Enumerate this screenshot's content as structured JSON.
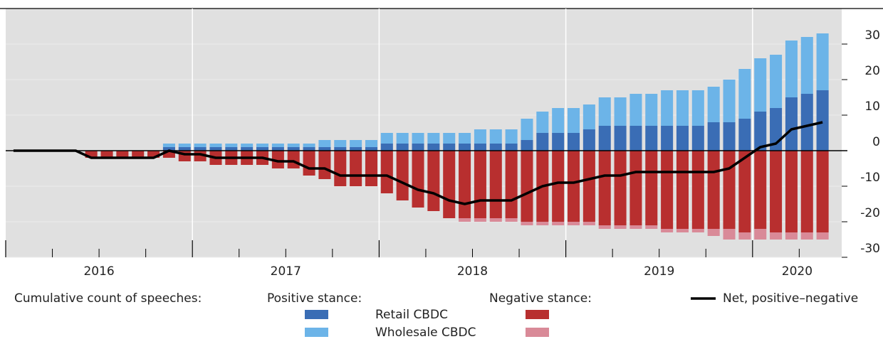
{
  "chart_data": {
    "type": "stacked-bar",
    "categories": [
      "2016",
      null,
      null,
      null,
      null,
      null,
      null,
      null,
      null,
      null,
      null,
      null,
      "2017",
      null,
      null,
      null,
      null,
      null,
      null,
      null,
      null,
      null,
      null,
      null,
      "2018",
      null,
      null,
      null,
      null,
      null,
      null,
      null,
      null,
      null,
      null,
      null,
      "2019",
      null,
      null,
      null,
      null,
      null,
      null,
      null,
      null,
      null,
      null,
      null,
      "2020",
      null,
      null,
      null,
      null
    ],
    "legend_title": "Cumulative count of speeches:",
    "stack_names": [
      "Retail CBDC",
      "Wholesale CBDC"
    ],
    "series": [
      {
        "name": "Positive stance:",
        "stack": [
          {
            "color": "#3a6db5",
            "values": [
              0,
              0,
              0,
              0,
              0,
              0,
              0,
              0,
              0,
              0,
              1,
              1,
              1,
              1,
              1,
              1,
              1,
              1,
              1,
              1,
              1,
              1,
              1,
              1,
              2,
              2,
              2,
              2,
              2,
              2,
              2,
              2,
              2,
              3,
              5,
              5,
              5,
              6,
              7,
              7,
              7,
              7,
              7,
              7,
              7,
              8,
              8,
              9,
              11,
              12,
              15,
              16,
              17
            ]
          },
          {
            "color": "#6cb4e8",
            "values": [
              0,
              0,
              0,
              0,
              0,
              0,
              0,
              0,
              0,
              0,
              1,
              1,
              1,
              1,
              1,
              1,
              1,
              1,
              1,
              1,
              2,
              2,
              2,
              2,
              3,
              3,
              3,
              3,
              3,
              3,
              4,
              4,
              4,
              6,
              6,
              7,
              7,
              7,
              8,
              8,
              9,
              9,
              10,
              10,
              10,
              10,
              12,
              14,
              15,
              15,
              16,
              16,
              16
            ]
          }
        ]
      },
      {
        "name": "Negative stance:",
        "stack": [
          {
            "color": "#b82f2f",
            "values": [
              0,
              0,
              0,
              0,
              0,
              -2,
              -2,
              -2,
              -2,
              -2,
              -2,
              -3,
              -3,
              -4,
              -4,
              -4,
              -4,
              -5,
              -5,
              -7,
              -8,
              -10,
              -10,
              -10,
              -12,
              -14,
              -16,
              -17,
              -19,
              -19,
              -19,
              -19,
              -19,
              -20,
              -20,
              -20,
              -20,
              -20,
              -21,
              -21,
              -21,
              -21,
              -22,
              -22,
              -22,
              -22,
              -22,
              -23,
              -22,
              -23,
              -23,
              -23,
              -23
            ]
          },
          {
            "color": "#d98a98",
            "values": [
              0,
              0,
              0,
              0,
              0,
              0,
              0,
              0,
              0,
              0,
              0,
              0,
              0,
              0,
              0,
              0,
              0,
              0,
              0,
              0,
              0,
              0,
              0,
              0,
              0,
              0,
              0,
              0,
              0,
              -1,
              -1,
              -1,
              -1,
              -1,
              -1,
              -1,
              -1,
              -1,
              -1,
              -1,
              -1,
              -1,
              -1,
              -1,
              -1,
              -2,
              -3,
              -2,
              -3,
              -2,
              -2,
              -2,
              -2
            ]
          }
        ]
      }
    ],
    "net": {
      "name": "Net, positive–negative",
      "color": "#000000",
      "values": [
        0,
        0,
        0,
        0,
        0,
        -2,
        -2,
        -2,
        -2,
        -2,
        0,
        -1,
        -1,
        -2,
        -2,
        -2,
        -2,
        -3,
        -3,
        -5,
        -5,
        -7,
        -7,
        -7,
        -7,
        -9,
        -11,
        -12,
        -14,
        -15,
        -14,
        -14,
        -14,
        -12,
        -10,
        -9,
        -9,
        -8,
        -7,
        -7,
        -6,
        -6,
        -6,
        -6,
        -6,
        -6,
        -5,
        -2,
        1,
        2,
        6,
        7,
        8
      ]
    },
    "ylim": [
      -30,
      40
    ],
    "yticks": [
      -30,
      -20,
      -10,
      0,
      10,
      20,
      30
    ],
    "grid": true,
    "background": "#e0e0e0"
  }
}
